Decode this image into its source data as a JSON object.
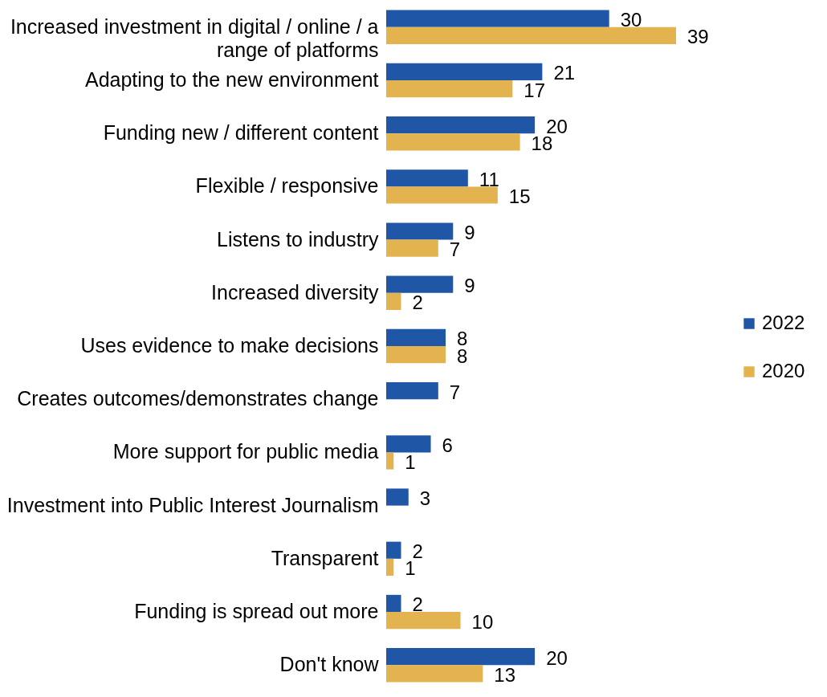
{
  "chart_data": {
    "type": "bar",
    "orientation": "horizontal",
    "categories": [
      "Increased investment in digital / online / a range of platforms",
      "Adapting to the new environment",
      "Funding new / different content",
      "Flexible / responsive",
      "Listens to industry",
      "Increased diversity",
      "Uses evidence to make decisions",
      "Creates outcomes/demonstrates change",
      "More support for public media",
      "Investment into Public Interest Journalism",
      "Transparent",
      "Funding is spread out more",
      "Don't know"
    ],
    "series": [
      {
        "name": "2022",
        "color": "#1f56a5",
        "values": [
          30,
          21,
          20,
          11,
          9,
          9,
          8,
          7,
          6,
          3,
          2,
          2,
          20
        ]
      },
      {
        "name": "2020",
        "color": "#e3b34f",
        "values": [
          39,
          17,
          18,
          15,
          7,
          2,
          8,
          null,
          1,
          null,
          1,
          10,
          13
        ]
      }
    ],
    "data_labels": true,
    "legend": "right",
    "grid": false,
    "tick_labels": "y"
  }
}
